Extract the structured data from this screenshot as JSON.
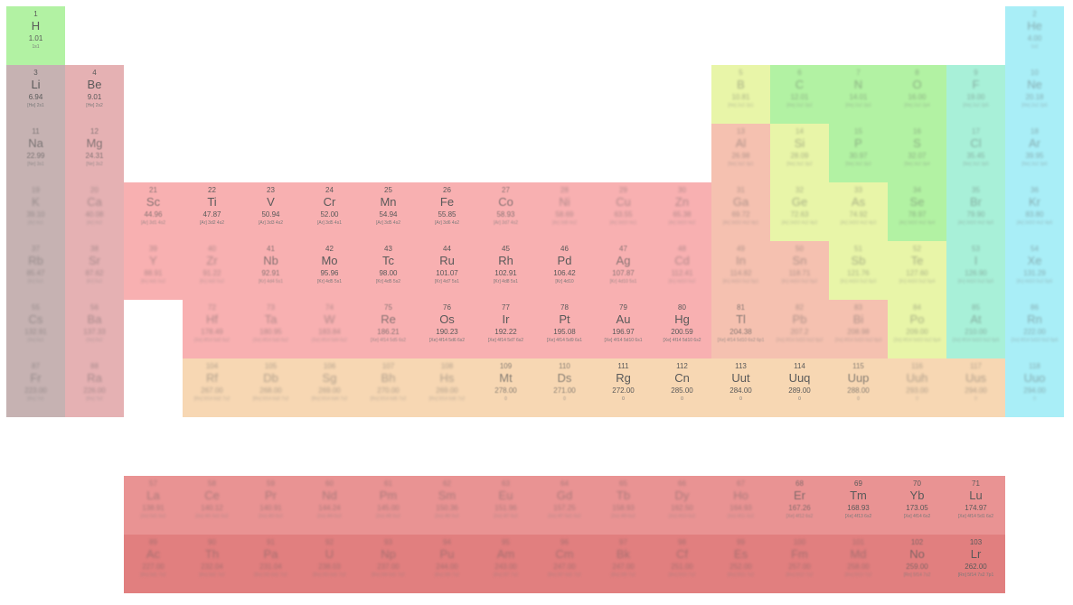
{
  "categories": {
    "nonmetal": "#b2f2a3",
    "noble": "#a9eef7",
    "alkali": "#c6b2b2",
    "alkaline": "#e5b1b3",
    "transition": "#f8b0b1",
    "unknown": "#f7d7b3",
    "postTransition": "#f5c1b0",
    "metalloid": "#e8f5a8",
    "halogen": "#a8f0d8",
    "lanthanide": "#e99393",
    "actinide": "#e17f7f"
  },
  "elements": [
    {
      "n": "1",
      "s": "H",
      "m": "1.01",
      "c": "1s1",
      "r": 1,
      "col": 1,
      "cat": "nonmetal"
    },
    {
      "n": "2",
      "s": "He",
      "m": "4.00",
      "c": "1s2",
      "r": 1,
      "col": 18,
      "cat": "noble",
      "fade": true
    },
    {
      "n": "3",
      "s": "Li",
      "m": "6.94",
      "c": "[He] 2s1",
      "r": 2,
      "col": 1,
      "cat": "alkali"
    },
    {
      "n": "4",
      "s": "Be",
      "m": "9.01",
      "c": "[He] 2s2",
      "r": 2,
      "col": 2,
      "cat": "alkaline"
    },
    {
      "n": "5",
      "s": "B",
      "m": "10.81",
      "c": "[He] 2s2 2p1",
      "r": 2,
      "col": 13,
      "cat": "metalloid",
      "fade": true
    },
    {
      "n": "6",
      "s": "C",
      "m": "12.01",
      "c": "[He] 2s2 2p2",
      "r": 2,
      "col": 14,
      "cat": "nonmetal",
      "fade": true
    },
    {
      "n": "7",
      "s": "N",
      "m": "14.01",
      "c": "[He] 2s2 2p3",
      "r": 2,
      "col": 15,
      "cat": "nonmetal",
      "fade": true
    },
    {
      "n": "8",
      "s": "O",
      "m": "16.00",
      "c": "[He] 2s2 2p4",
      "r": 2,
      "col": 16,
      "cat": "nonmetal",
      "fade": true
    },
    {
      "n": "9",
      "s": "F",
      "m": "19.00",
      "c": "[He] 2s2 2p5",
      "r": 2,
      "col": 17,
      "cat": "halogen",
      "fade": true
    },
    {
      "n": "10",
      "s": "Ne",
      "m": "20.18",
      "c": "[He] 2s2 2p6",
      "r": 2,
      "col": 18,
      "cat": "noble",
      "fade": true
    },
    {
      "n": "11",
      "s": "Na",
      "m": "22.99",
      "c": "[Ne] 3s1",
      "r": 3,
      "col": 1,
      "cat": "alkali",
      "faint": true
    },
    {
      "n": "12",
      "s": "Mg",
      "m": "24.31",
      "c": "[Ne] 3s2",
      "r": 3,
      "col": 2,
      "cat": "alkaline",
      "faint": true
    },
    {
      "n": "13",
      "s": "Al",
      "m": "26.98",
      "c": "[Ne] 3s2 3p1",
      "r": 3,
      "col": 13,
      "cat": "postTransition",
      "fade": true
    },
    {
      "n": "14",
      "s": "Si",
      "m": "28.09",
      "c": "[Ne] 3s2 3p2",
      "r": 3,
      "col": 14,
      "cat": "metalloid",
      "fade": true
    },
    {
      "n": "15",
      "s": "P",
      "m": "30.97",
      "c": "[Ne] 3s2 3p3",
      "r": 3,
      "col": 15,
      "cat": "nonmetal",
      "fade": true
    },
    {
      "n": "16",
      "s": "S",
      "m": "32.07",
      "c": "[Ne] 3s2 3p4",
      "r": 3,
      "col": 16,
      "cat": "nonmetal",
      "fade": true
    },
    {
      "n": "17",
      "s": "Cl",
      "m": "35.45",
      "c": "[Ne] 3s2 3p5",
      "r": 3,
      "col": 17,
      "cat": "halogen",
      "fade": true
    },
    {
      "n": "18",
      "s": "Ar",
      "m": "39.95",
      "c": "[Ne] 3s2 3p6",
      "r": 3,
      "col": 18,
      "cat": "noble",
      "fade": true
    },
    {
      "n": "19",
      "s": "K",
      "m": "39.10",
      "c": "[Ar] 4s1",
      "r": 4,
      "col": 1,
      "cat": "alkali",
      "fade": true
    },
    {
      "n": "20",
      "s": "Ca",
      "m": "40.08",
      "c": "[Ar] 4s2",
      "r": 4,
      "col": 2,
      "cat": "alkaline",
      "fade": true
    },
    {
      "n": "21",
      "s": "Sc",
      "m": "44.96",
      "c": "[Ar] 3d1 4s2",
      "r": 4,
      "col": 3,
      "cat": "transition",
      "faint": true
    },
    {
      "n": "22",
      "s": "Ti",
      "m": "47.87",
      "c": "[Ar] 3d2 4s2",
      "r": 4,
      "col": 4,
      "cat": "transition"
    },
    {
      "n": "23",
      "s": "V",
      "m": "50.94",
      "c": "[Ar] 3d3 4s2",
      "r": 4,
      "col": 5,
      "cat": "transition"
    },
    {
      "n": "24",
      "s": "Cr",
      "m": "52.00",
      "c": "[Ar] 3d5 4s1",
      "r": 4,
      "col": 6,
      "cat": "transition"
    },
    {
      "n": "25",
      "s": "Mn",
      "m": "54.94",
      "c": "[Ar] 3d5 4s2",
      "r": 4,
      "col": 7,
      "cat": "transition"
    },
    {
      "n": "26",
      "s": "Fe",
      "m": "55.85",
      "c": "[Ar] 3d6 4s2",
      "r": 4,
      "col": 8,
      "cat": "transition"
    },
    {
      "n": "27",
      "s": "Co",
      "m": "58.93",
      "c": "[Ar] 3d7 4s2",
      "r": 4,
      "col": 9,
      "cat": "transition",
      "faint": true
    },
    {
      "n": "28",
      "s": "Ni",
      "m": "58.69",
      "c": "[Ar] 3d8 4s2",
      "r": 4,
      "col": 10,
      "cat": "transition",
      "fade": true
    },
    {
      "n": "29",
      "s": "Cu",
      "m": "63.55",
      "c": "[Ar] 3d10 4s1",
      "r": 4,
      "col": 11,
      "cat": "transition",
      "fade": true
    },
    {
      "n": "30",
      "s": "Zn",
      "m": "65.38",
      "c": "[Ar] 3d10 4s2",
      "r": 4,
      "col": 12,
      "cat": "transition",
      "fade": true
    },
    {
      "n": "31",
      "s": "Ga",
      "m": "69.72",
      "c": "[Ar] 3d10 4s2 4p1",
      "r": 4,
      "col": 13,
      "cat": "postTransition",
      "fade": true
    },
    {
      "n": "32",
      "s": "Ge",
      "m": "72.63",
      "c": "[Ar] 3d10 4s2 4p2",
      "r": 4,
      "col": 14,
      "cat": "metalloid",
      "fade": true
    },
    {
      "n": "33",
      "s": "As",
      "m": "74.92",
      "c": "[Ar] 3d10 4s2 4p3",
      "r": 4,
      "col": 15,
      "cat": "metalloid",
      "fade": true
    },
    {
      "n": "34",
      "s": "Se",
      "m": "78.97",
      "c": "[Ar] 3d10 4s2 4p4",
      "r": 4,
      "col": 16,
      "cat": "nonmetal",
      "fade": true
    },
    {
      "n": "35",
      "s": "Br",
      "m": "79.90",
      "c": "[Ar] 3d10 4s2 4p5",
      "r": 4,
      "col": 17,
      "cat": "halogen",
      "fade": true
    },
    {
      "n": "36",
      "s": "Kr",
      "m": "83.80",
      "c": "[Ar] 3d10 4s2 4p6",
      "r": 4,
      "col": 18,
      "cat": "noble",
      "fade": true
    },
    {
      "n": "37",
      "s": "Rb",
      "m": "85.47",
      "c": "[Kr] 5s1",
      "r": 5,
      "col": 1,
      "cat": "alkali",
      "fade": true
    },
    {
      "n": "38",
      "s": "Sr",
      "m": "87.62",
      "c": "[Kr] 5s2",
      "r": 5,
      "col": 2,
      "cat": "alkaline",
      "fade": true
    },
    {
      "n": "39",
      "s": "Y",
      "m": "88.91",
      "c": "[Kr] 4d1 5s2",
      "r": 5,
      "col": 3,
      "cat": "transition",
      "fade": true
    },
    {
      "n": "40",
      "s": "Zr",
      "m": "91.22",
      "c": "[Kr] 4d2 5s2",
      "r": 5,
      "col": 4,
      "cat": "transition",
      "fade": true
    },
    {
      "n": "41",
      "s": "Nb",
      "m": "92.91",
      "c": "[Kr] 4d4 5s1",
      "r": 5,
      "col": 5,
      "cat": "transition",
      "faint": true
    },
    {
      "n": "42",
      "s": "Mo",
      "m": "95.96",
      "c": "[Kr] 4d5 5s1",
      "r": 5,
      "col": 6,
      "cat": "transition"
    },
    {
      "n": "43",
      "s": "Tc",
      "m": "98.00",
      "c": "[Kr] 4d5 5s2",
      "r": 5,
      "col": 7,
      "cat": "transition"
    },
    {
      "n": "44",
      "s": "Ru",
      "m": "101.07",
      "c": "[Kr] 4d7 5s1",
      "r": 5,
      "col": 8,
      "cat": "transition"
    },
    {
      "n": "45",
      "s": "Rh",
      "m": "102.91",
      "c": "[Kr] 4d8 5s1",
      "r": 5,
      "col": 9,
      "cat": "transition"
    },
    {
      "n": "46",
      "s": "Pd",
      "m": "106.42",
      "c": "[Kr] 4d10",
      "r": 5,
      "col": 10,
      "cat": "transition"
    },
    {
      "n": "47",
      "s": "Ag",
      "m": "107.87",
      "c": "[Kr] 4d10 5s1",
      "r": 5,
      "col": 11,
      "cat": "transition",
      "faint": true
    },
    {
      "n": "48",
      "s": "Cd",
      "m": "112.41",
      "c": "[Kr] 4d10 5s2",
      "r": 5,
      "col": 12,
      "cat": "transition",
      "fade": true
    },
    {
      "n": "49",
      "s": "In",
      "m": "114.82",
      "c": "[Kr] 4d10 5s2 5p1",
      "r": 5,
      "col": 13,
      "cat": "postTransition",
      "fade": true
    },
    {
      "n": "50",
      "s": "Sn",
      "m": "118.71",
      "c": "[Kr] 4d10 5s2 5p2",
      "r": 5,
      "col": 14,
      "cat": "postTransition",
      "fade": true
    },
    {
      "n": "51",
      "s": "Sb",
      "m": "121.76",
      "c": "[Kr] 4d10 5s2 5p3",
      "r": 5,
      "col": 15,
      "cat": "metalloid",
      "fade": true
    },
    {
      "n": "52",
      "s": "Te",
      "m": "127.60",
      "c": "[Kr] 4d10 5s2 5p4",
      "r": 5,
      "col": 16,
      "cat": "metalloid",
      "fade": true
    },
    {
      "n": "53",
      "s": "I",
      "m": "126.90",
      "c": "[Kr] 4d10 5s2 5p5",
      "r": 5,
      "col": 17,
      "cat": "halogen",
      "fade": true
    },
    {
      "n": "54",
      "s": "Xe",
      "m": "131.29",
      "c": "[Kr] 4d10 5s2 5p6",
      "r": 5,
      "col": 18,
      "cat": "noble",
      "fade": true
    },
    {
      "n": "55",
      "s": "Cs",
      "m": "132.91",
      "c": "[Xe] 6s1",
      "r": 6,
      "col": 1,
      "cat": "alkali",
      "fade": true
    },
    {
      "n": "56",
      "s": "Ba",
      "m": "137.33",
      "c": "[Xe] 6s2",
      "r": 6,
      "col": 2,
      "cat": "alkaline",
      "fade": true
    },
    {
      "n": "72",
      "s": "Hf",
      "m": "178.49",
      "c": "[Xe] 4f14 5d2 6s2",
      "r": 6,
      "col": 4,
      "cat": "transition",
      "fade": true
    },
    {
      "n": "73",
      "s": "Ta",
      "m": "180.95",
      "c": "[Xe] 4f14 5d3 6s2",
      "r": 6,
      "col": 5,
      "cat": "transition",
      "fade": true
    },
    {
      "n": "74",
      "s": "W",
      "m": "183.84",
      "c": "[Xe] 4f14 5d4 6s2",
      "r": 6,
      "col": 6,
      "cat": "transition",
      "fade": true
    },
    {
      "n": "75",
      "s": "Re",
      "m": "186.21",
      "c": "[Xe] 4f14 5d5 6s2",
      "r": 6,
      "col": 7,
      "cat": "transition",
      "faint": true
    },
    {
      "n": "76",
      "s": "Os",
      "m": "190.23",
      "c": "[Xe] 4f14 5d6 6s2",
      "r": 6,
      "col": 8,
      "cat": "transition"
    },
    {
      "n": "77",
      "s": "Ir",
      "m": "192.22",
      "c": "[Xe] 4f14 5d7 6s2",
      "r": 6,
      "col": 9,
      "cat": "transition"
    },
    {
      "n": "78",
      "s": "Pt",
      "m": "195.08",
      "c": "[Xe] 4f14 5d9 6s1",
      "r": 6,
      "col": 10,
      "cat": "transition"
    },
    {
      "n": "79",
      "s": "Au",
      "m": "196.97",
      "c": "[Xe] 4f14 5d10 6s1",
      "r": 6,
      "col": 11,
      "cat": "transition"
    },
    {
      "n": "80",
      "s": "Hg",
      "m": "200.59",
      "c": "[Xe] 4f14 5d10 6s2",
      "r": 6,
      "col": 12,
      "cat": "transition"
    },
    {
      "n": "81",
      "s": "Tl",
      "m": "204.38",
      "c": "[Xe] 4f14 5d10 6s2 6p1",
      "r": 6,
      "col": 13,
      "cat": "postTransition",
      "faint": true
    },
    {
      "n": "82",
      "s": "Pb",
      "m": "207.2",
      "c": "[Xe] 4f14 5d10 6s2 6p2",
      "r": 6,
      "col": 14,
      "cat": "postTransition",
      "fade": true
    },
    {
      "n": "83",
      "s": "Bi",
      "m": "208.98",
      "c": "[Xe] 4f14 5d10 6s2 6p3",
      "r": 6,
      "col": 15,
      "cat": "postTransition",
      "fade": true
    },
    {
      "n": "84",
      "s": "Po",
      "m": "209.00",
      "c": "[Xe] 4f14 5d10 6s2 6p4",
      "r": 6,
      "col": 16,
      "cat": "metalloid",
      "fade": true
    },
    {
      "n": "85",
      "s": "At",
      "m": "210.00",
      "c": "[Xe] 4f14 5d10 6s2 6p5",
      "r": 6,
      "col": 17,
      "cat": "halogen",
      "fade": true
    },
    {
      "n": "86",
      "s": "Rn",
      "m": "222.00",
      "c": "[Xe] 4f14 5d10 6s2 6p6",
      "r": 6,
      "col": 18,
      "cat": "noble",
      "fade": true
    },
    {
      "n": "87",
      "s": "Fr",
      "m": "223.00",
      "c": "[Rn] 7s1",
      "r": 7,
      "col": 1,
      "cat": "alkali",
      "fade": true
    },
    {
      "n": "88",
      "s": "Ra",
      "m": "226.00",
      "c": "[Rn] 7s2",
      "r": 7,
      "col": 2,
      "cat": "alkaline",
      "fade": true
    },
    {
      "n": "104",
      "s": "Rf",
      "m": "267.00",
      "c": "[Rn] 5f14 6d2 7s2",
      "r": 7,
      "col": 4,
      "cat": "unknown",
      "fade": true
    },
    {
      "n": "105",
      "s": "Db",
      "m": "268.00",
      "c": "[Rn] 5f14 6d3 7s2",
      "r": 7,
      "col": 5,
      "cat": "unknown",
      "fade": true
    },
    {
      "n": "106",
      "s": "Sg",
      "m": "269.00",
      "c": "[Rn] 5f14 6d4 7s2",
      "r": 7,
      "col": 6,
      "cat": "unknown",
      "fade": true
    },
    {
      "n": "107",
      "s": "Bh",
      "m": "270.00",
      "c": "[Rn] 5f14 6d5 7s2",
      "r": 7,
      "col": 7,
      "cat": "unknown",
      "fade": true
    },
    {
      "n": "108",
      "s": "Hs",
      "m": "269.00",
      "c": "[Rn] 5f14 6d6 7s2",
      "r": 7,
      "col": 8,
      "cat": "unknown",
      "fade": true
    },
    {
      "n": "109",
      "s": "Mt",
      "m": "278.00",
      "c": "0",
      "r": 7,
      "col": 9,
      "cat": "unknown",
      "faint": true
    },
    {
      "n": "110",
      "s": "Ds",
      "m": "271.00",
      "c": "0",
      "r": 7,
      "col": 10,
      "cat": "unknown",
      "faint": true
    },
    {
      "n": "111",
      "s": "Rg",
      "m": "272.00",
      "c": "0",
      "r": 7,
      "col": 11,
      "cat": "unknown"
    },
    {
      "n": "112",
      "s": "Cn",
      "m": "285.00",
      "c": "0",
      "r": 7,
      "col": 12,
      "cat": "unknown"
    },
    {
      "n": "113",
      "s": "Uut",
      "m": "284.00",
      "c": "0",
      "r": 7,
      "col": 13,
      "cat": "unknown"
    },
    {
      "n": "114",
      "s": "Uuq",
      "m": "289.00",
      "c": "0",
      "r": 7,
      "col": 14,
      "cat": "unknown"
    },
    {
      "n": "115",
      "s": "Uup",
      "m": "288.00",
      "c": "0",
      "r": 7,
      "col": 15,
      "cat": "unknown",
      "faint": true
    },
    {
      "n": "116",
      "s": "Uuh",
      "m": "293.00",
      "c": "0",
      "r": 7,
      "col": 16,
      "cat": "unknown",
      "fade": true
    },
    {
      "n": "117",
      "s": "Uus",
      "m": "294.00",
      "c": "0",
      "r": 7,
      "col": 17,
      "cat": "unknown",
      "fade": true
    },
    {
      "n": "118",
      "s": "Uuo",
      "m": "294.00",
      "c": "0",
      "r": 7,
      "col": 18,
      "cat": "noble",
      "fade": true
    },
    {
      "n": "57",
      "s": "La",
      "m": "138.91",
      "c": "[Xe] 5d1 6s2",
      "r": 9,
      "col": 3,
      "cat": "lanthanide",
      "fade": true
    },
    {
      "n": "58",
      "s": "Ce",
      "m": "140.12",
      "c": "[Xe] 4f1 5d1 6s2",
      "r": 9,
      "col": 4,
      "cat": "lanthanide",
      "fade": true
    },
    {
      "n": "59",
      "s": "Pr",
      "m": "140.91",
      "c": "[Xe] 4f3 6s2",
      "r": 9,
      "col": 5,
      "cat": "lanthanide",
      "fade": true
    },
    {
      "n": "60",
      "s": "Nd",
      "m": "144.24",
      "c": "[Xe] 4f4 6s2",
      "r": 9,
      "col": 6,
      "cat": "lanthanide",
      "fade": true
    },
    {
      "n": "61",
      "s": "Pm",
      "m": "145.00",
      "c": "[Xe] 4f5 6s2",
      "r": 9,
      "col": 7,
      "cat": "lanthanide",
      "fade": true
    },
    {
      "n": "62",
      "s": "Sm",
      "m": "150.36",
      "c": "[Xe] 4f6 6s2",
      "r": 9,
      "col": 8,
      "cat": "lanthanide",
      "fade": true
    },
    {
      "n": "63",
      "s": "Eu",
      "m": "151.96",
      "c": "[Xe] 4f7 6s2",
      "r": 9,
      "col": 9,
      "cat": "lanthanide",
      "fade": true
    },
    {
      "n": "64",
      "s": "Gd",
      "m": "157.25",
      "c": "[Xe] 4f7 5d1 6s2",
      "r": 9,
      "col": 10,
      "cat": "lanthanide",
      "fade": true
    },
    {
      "n": "65",
      "s": "Tb",
      "m": "158.93",
      "c": "[Xe] 4f9 6s2",
      "r": 9,
      "col": 11,
      "cat": "lanthanide",
      "fade": true
    },
    {
      "n": "66",
      "s": "Dy",
      "m": "162.50",
      "c": "[Xe] 4f10 6s2",
      "r": 9,
      "col": 12,
      "cat": "lanthanide",
      "fade": true
    },
    {
      "n": "67",
      "s": "Ho",
      "m": "164.93",
      "c": "[Xe] 4f11 6s2",
      "r": 9,
      "col": 13,
      "cat": "lanthanide",
      "fade": true
    },
    {
      "n": "68",
      "s": "Er",
      "m": "167.26",
      "c": "[Xe] 4f12 6s2",
      "r": 9,
      "col": 14,
      "cat": "lanthanide",
      "faint": true
    },
    {
      "n": "69",
      "s": "Tm",
      "m": "168.93",
      "c": "[Xe] 4f13 6s2",
      "r": 9,
      "col": 15,
      "cat": "lanthanide"
    },
    {
      "n": "70",
      "s": "Yb",
      "m": "173.05",
      "c": "[Xe] 4f14 6s2",
      "r": 9,
      "col": 16,
      "cat": "lanthanide"
    },
    {
      "n": "71",
      "s": "Lu",
      "m": "174.97",
      "c": "[Xe] 4f14 5d1 6s2",
      "r": 9,
      "col": 17,
      "cat": "lanthanide"
    },
    {
      "n": "89",
      "s": "Ac",
      "m": "227.00",
      "c": "[Rn] 6d1 7s2",
      "r": 10,
      "col": 3,
      "cat": "actinide",
      "fade": true
    },
    {
      "n": "90",
      "s": "Th",
      "m": "232.04",
      "c": "[Rn] 6d2 7s2",
      "r": 10,
      "col": 4,
      "cat": "actinide",
      "fade": true
    },
    {
      "n": "91",
      "s": "Pa",
      "m": "231.04",
      "c": "[Rn] 5f2 6d1 7s2",
      "r": 10,
      "col": 5,
      "cat": "actinide",
      "fade": true
    },
    {
      "n": "92",
      "s": "U",
      "m": "238.03",
      "c": "[Rn] 5f3 6d1 7s2",
      "r": 10,
      "col": 6,
      "cat": "actinide",
      "fade": true
    },
    {
      "n": "93",
      "s": "Np",
      "m": "237.00",
      "c": "[Rn] 5f4 6d1 7s2",
      "r": 10,
      "col": 7,
      "cat": "actinide",
      "fade": true
    },
    {
      "n": "94",
      "s": "Pu",
      "m": "244.00",
      "c": "[Rn] 5f6 7s2",
      "r": 10,
      "col": 8,
      "cat": "actinide",
      "fade": true
    },
    {
      "n": "95",
      "s": "Am",
      "m": "243.00",
      "c": "[Rn] 5f7 7s2",
      "r": 10,
      "col": 9,
      "cat": "actinide",
      "fade": true
    },
    {
      "n": "96",
      "s": "Cm",
      "m": "247.00",
      "c": "[Rn] 5f7 6d1 7s2",
      "r": 10,
      "col": 10,
      "cat": "actinide",
      "fade": true
    },
    {
      "n": "97",
      "s": "Bk",
      "m": "247.00",
      "c": "[Rn] 5f9 7s2",
      "r": 10,
      "col": 11,
      "cat": "actinide",
      "fade": true
    },
    {
      "n": "98",
      "s": "Cf",
      "m": "251.00",
      "c": "[Rn] 5f10 7s2",
      "r": 10,
      "col": 12,
      "cat": "actinide",
      "fade": true
    },
    {
      "n": "99",
      "s": "Es",
      "m": "252.00",
      "c": "[Rn] 5f11 7s2",
      "r": 10,
      "col": 13,
      "cat": "actinide",
      "fade": true
    },
    {
      "n": "100",
      "s": "Fm",
      "m": "257.00",
      "c": "[Rn] 5f12 7s2",
      "r": 10,
      "col": 14,
      "cat": "actinide",
      "fade": true
    },
    {
      "n": "101",
      "s": "Md",
      "m": "258.00",
      "c": "[Rn] 5f13 7s2",
      "r": 10,
      "col": 15,
      "cat": "actinide",
      "fade": true
    },
    {
      "n": "102",
      "s": "No",
      "m": "259.00",
      "c": "[Rn] 5f14 7s2",
      "r": 10,
      "col": 16,
      "cat": "actinide",
      "faint": true
    },
    {
      "n": "103",
      "s": "Lr",
      "m": "262.00",
      "c": "[Rn] 5f14 7s2 7p1",
      "r": 10,
      "col": 17,
      "cat": "actinide"
    }
  ]
}
